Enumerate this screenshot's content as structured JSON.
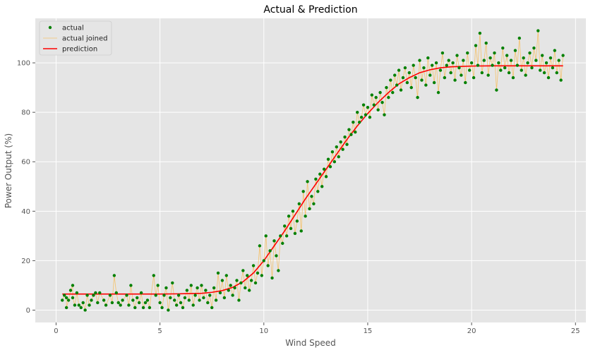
{
  "chart_data": {
    "type": "scatter",
    "title": "Actual & Prediction",
    "xlabel": "Wind Speed",
    "ylabel": "Power Output (%)",
    "xlim": [
      -1.0,
      25.5
    ],
    "ylim": [
      -5,
      118
    ],
    "x_ticks": [
      0,
      5,
      10,
      15,
      20,
      25
    ],
    "y_ticks": [
      0,
      20,
      40,
      60,
      80,
      100
    ],
    "grid": true,
    "legend_position": "top-left",
    "colors": {
      "background": "#e5e5e5",
      "grid": "#ffffff",
      "actual": "#008000",
      "actual_joined": "#f5c26b",
      "prediction": "#ff0000"
    },
    "series": [
      {
        "name": "actual",
        "style": "points",
        "points": [
          [
            0.3,
            4
          ],
          [
            0.4,
            6
          ],
          [
            0.5,
            5
          ],
          [
            0.5,
            1
          ],
          [
            0.6,
            4
          ],
          [
            0.7,
            8
          ],
          [
            0.8,
            10
          ],
          [
            0.8,
            5
          ],
          [
            0.9,
            2
          ],
          [
            1.0,
            7
          ],
          [
            1.1,
            2
          ],
          [
            1.2,
            1
          ],
          [
            1.3,
            3
          ],
          [
            1.4,
            0
          ],
          [
            1.5,
            6
          ],
          [
            1.6,
            2
          ],
          [
            1.7,
            4
          ],
          [
            1.8,
            6
          ],
          [
            1.9,
            7
          ],
          [
            2.0,
            3
          ],
          [
            2.1,
            7
          ],
          [
            2.3,
            4
          ],
          [
            2.4,
            2
          ],
          [
            2.6,
            6
          ],
          [
            2.7,
            3
          ],
          [
            2.8,
            14
          ],
          [
            2.9,
            7
          ],
          [
            3.0,
            3
          ],
          [
            3.1,
            2
          ],
          [
            3.2,
            4
          ],
          [
            3.4,
            6
          ],
          [
            3.5,
            2
          ],
          [
            3.6,
            10
          ],
          [
            3.7,
            4
          ],
          [
            3.8,
            1
          ],
          [
            3.9,
            5
          ],
          [
            4.0,
            3
          ],
          [
            4.1,
            7
          ],
          [
            4.2,
            1
          ],
          [
            4.3,
            3
          ],
          [
            4.4,
            4
          ],
          [
            4.5,
            1
          ],
          [
            4.7,
            14
          ],
          [
            4.8,
            6
          ],
          [
            4.9,
            10
          ],
          [
            5.0,
            3
          ],
          [
            5.1,
            1
          ],
          [
            5.2,
            6
          ],
          [
            5.3,
            9
          ],
          [
            5.4,
            0
          ],
          [
            5.5,
            5
          ],
          [
            5.6,
            11
          ],
          [
            5.7,
            4
          ],
          [
            5.8,
            2
          ],
          [
            5.9,
            6
          ],
          [
            6.0,
            3
          ],
          [
            6.1,
            1
          ],
          [
            6.2,
            5
          ],
          [
            6.3,
            8
          ],
          [
            6.4,
            4
          ],
          [
            6.5,
            10
          ],
          [
            6.6,
            2
          ],
          [
            6.7,
            6
          ],
          [
            6.8,
            9
          ],
          [
            6.9,
            4
          ],
          [
            7.0,
            10
          ],
          [
            7.1,
            5
          ],
          [
            7.2,
            8
          ],
          [
            7.3,
            3
          ],
          [
            7.4,
            6
          ],
          [
            7.5,
            1
          ],
          [
            7.6,
            9
          ],
          [
            7.7,
            4
          ],
          [
            7.8,
            15
          ],
          [
            7.9,
            7
          ],
          [
            8.0,
            12
          ],
          [
            8.1,
            5
          ],
          [
            8.2,
            14
          ],
          [
            8.3,
            8
          ],
          [
            8.4,
            10
          ],
          [
            8.5,
            6
          ],
          [
            8.6,
            9
          ],
          [
            8.7,
            12
          ],
          [
            8.8,
            4
          ],
          [
            8.9,
            11
          ],
          [
            9.0,
            16
          ],
          [
            9.1,
            9
          ],
          [
            9.2,
            14
          ],
          [
            9.3,
            8
          ],
          [
            9.4,
            12
          ],
          [
            9.5,
            18
          ],
          [
            9.6,
            11
          ],
          [
            9.7,
            15
          ],
          [
            9.8,
            26
          ],
          [
            9.9,
            14
          ],
          [
            10.0,
            20
          ],
          [
            10.1,
            30
          ],
          [
            10.2,
            18
          ],
          [
            10.3,
            24
          ],
          [
            10.4,
            13
          ],
          [
            10.5,
            28
          ],
          [
            10.6,
            22
          ],
          [
            10.7,
            16
          ],
          [
            10.8,
            30
          ],
          [
            10.9,
            27
          ],
          [
            11.0,
            34
          ],
          [
            11.1,
            30
          ],
          [
            11.2,
            38
          ],
          [
            11.3,
            33
          ],
          [
            11.4,
            40
          ],
          [
            11.5,
            31
          ],
          [
            11.6,
            36
          ],
          [
            11.7,
            43
          ],
          [
            11.8,
            32
          ],
          [
            11.9,
            48
          ],
          [
            12.0,
            38
          ],
          [
            12.1,
            52
          ],
          [
            12.2,
            41
          ],
          [
            12.3,
            46
          ],
          [
            12.4,
            43
          ],
          [
            12.5,
            53
          ],
          [
            12.6,
            48
          ],
          [
            12.7,
            55
          ],
          [
            12.8,
            50
          ],
          [
            12.9,
            57
          ],
          [
            13.0,
            54
          ],
          [
            13.1,
            61
          ],
          [
            13.2,
            58
          ],
          [
            13.3,
            64
          ],
          [
            13.4,
            60
          ],
          [
            13.5,
            66
          ],
          [
            13.6,
            62
          ],
          [
            13.7,
            68
          ],
          [
            13.8,
            65
          ],
          [
            13.9,
            70
          ],
          [
            14.0,
            67
          ],
          [
            14.1,
            73
          ],
          [
            14.2,
            71
          ],
          [
            14.3,
            76
          ],
          [
            14.4,
            72
          ],
          [
            14.5,
            80
          ],
          [
            14.6,
            76
          ],
          [
            14.7,
            78
          ],
          [
            14.8,
            83
          ],
          [
            14.9,
            79
          ],
          [
            15.0,
            82
          ],
          [
            15.1,
            78
          ],
          [
            15.2,
            87
          ],
          [
            15.3,
            83
          ],
          [
            15.4,
            86
          ],
          [
            15.5,
            81
          ],
          [
            15.6,
            88
          ],
          [
            15.7,
            84
          ],
          [
            15.8,
            79
          ],
          [
            15.9,
            90
          ],
          [
            16.0,
            86
          ],
          [
            16.1,
            93
          ],
          [
            16.2,
            88
          ],
          [
            16.3,
            95
          ],
          [
            16.4,
            91
          ],
          [
            16.5,
            97
          ],
          [
            16.6,
            89
          ],
          [
            16.7,
            94
          ],
          [
            16.8,
            98
          ],
          [
            16.9,
            92
          ],
          [
            17.0,
            96
          ],
          [
            17.1,
            90
          ],
          [
            17.2,
            99
          ],
          [
            17.3,
            94
          ],
          [
            17.4,
            86
          ],
          [
            17.5,
            101
          ],
          [
            17.6,
            93
          ],
          [
            17.7,
            98
          ],
          [
            17.8,
            91
          ],
          [
            17.9,
            102
          ],
          [
            18.0,
            95
          ],
          [
            18.1,
            99
          ],
          [
            18.2,
            92
          ],
          [
            18.3,
            100
          ],
          [
            18.4,
            88
          ],
          [
            18.5,
            97
          ],
          [
            18.6,
            104
          ],
          [
            18.7,
            94
          ],
          [
            18.8,
            99
          ],
          [
            18.9,
            101
          ],
          [
            19.0,
            96
          ],
          [
            19.1,
            100
          ],
          [
            19.2,
            93
          ],
          [
            19.3,
            103
          ],
          [
            19.4,
            98
          ],
          [
            19.5,
            95
          ],
          [
            19.6,
            101
          ],
          [
            19.7,
            92
          ],
          [
            19.8,
            104
          ],
          [
            19.9,
            97
          ],
          [
            20.0,
            100
          ],
          [
            20.1,
            94
          ],
          [
            20.2,
            107
          ],
          [
            20.3,
            99
          ],
          [
            20.4,
            112
          ],
          [
            20.5,
            96
          ],
          [
            20.6,
            101
          ],
          [
            20.7,
            108
          ],
          [
            20.8,
            95
          ],
          [
            20.9,
            102
          ],
          [
            21.0,
            99
          ],
          [
            21.1,
            104
          ],
          [
            21.2,
            89
          ],
          [
            21.3,
            100
          ],
          [
            21.4,
            97
          ],
          [
            21.5,
            106
          ],
          [
            21.6,
            98
          ],
          [
            21.7,
            103
          ],
          [
            21.8,
            96
          ],
          [
            21.9,
            101
          ],
          [
            22.0,
            94
          ],
          [
            22.1,
            105
          ],
          [
            22.2,
            99
          ],
          [
            22.3,
            110
          ],
          [
            22.4,
            97
          ],
          [
            22.5,
            102
          ],
          [
            22.6,
            95
          ],
          [
            22.7,
            100
          ],
          [
            22.8,
            104
          ],
          [
            22.9,
            98
          ],
          [
            23.0,
            106
          ],
          [
            23.1,
            101
          ],
          [
            23.2,
            113
          ],
          [
            23.3,
            97
          ],
          [
            23.4,
            103
          ],
          [
            23.5,
            96
          ],
          [
            23.6,
            100
          ],
          [
            23.7,
            94
          ],
          [
            23.8,
            102
          ],
          [
            23.9,
            98
          ],
          [
            24.0,
            105
          ],
          [
            24.1,
            96
          ],
          [
            24.2,
            101
          ],
          [
            24.3,
            93
          ],
          [
            24.4,
            103
          ]
        ]
      },
      {
        "name": "actual joined",
        "style": "line",
        "joins": "actual"
      },
      {
        "name": "prediction",
        "style": "line",
        "points": [
          [
            0.3,
            6.5
          ],
          [
            1,
            6.5
          ],
          [
            2,
            6.5
          ],
          [
            3,
            6.5
          ],
          [
            4,
            6.5
          ],
          [
            5,
            6.5
          ],
          [
            6,
            6.6
          ],
          [
            7,
            6.8
          ],
          [
            7.5,
            7.2
          ],
          [
            8,
            7.9
          ],
          [
            8.5,
            9.2
          ],
          [
            9,
            11.5
          ],
          [
            9.5,
            15
          ],
          [
            10,
            20
          ],
          [
            10.5,
            26
          ],
          [
            11,
            32
          ],
          [
            11.5,
            38.5
          ],
          [
            12,
            45
          ],
          [
            12.5,
            51
          ],
          [
            13,
            57
          ],
          [
            13.5,
            63
          ],
          [
            14,
            69
          ],
          [
            14.5,
            74.5
          ],
          [
            15,
            79.5
          ],
          [
            15.5,
            84
          ],
          [
            16,
            88
          ],
          [
            16.5,
            91.5
          ],
          [
            17,
            94
          ],
          [
            17.5,
            96
          ],
          [
            18,
            97.2
          ],
          [
            18.5,
            98
          ],
          [
            19,
            98.4
          ],
          [
            20,
            98.7
          ],
          [
            21,
            98.8
          ],
          [
            22,
            98.8
          ],
          [
            23,
            98.8
          ],
          [
            24.4,
            98.8
          ]
        ]
      }
    ]
  }
}
